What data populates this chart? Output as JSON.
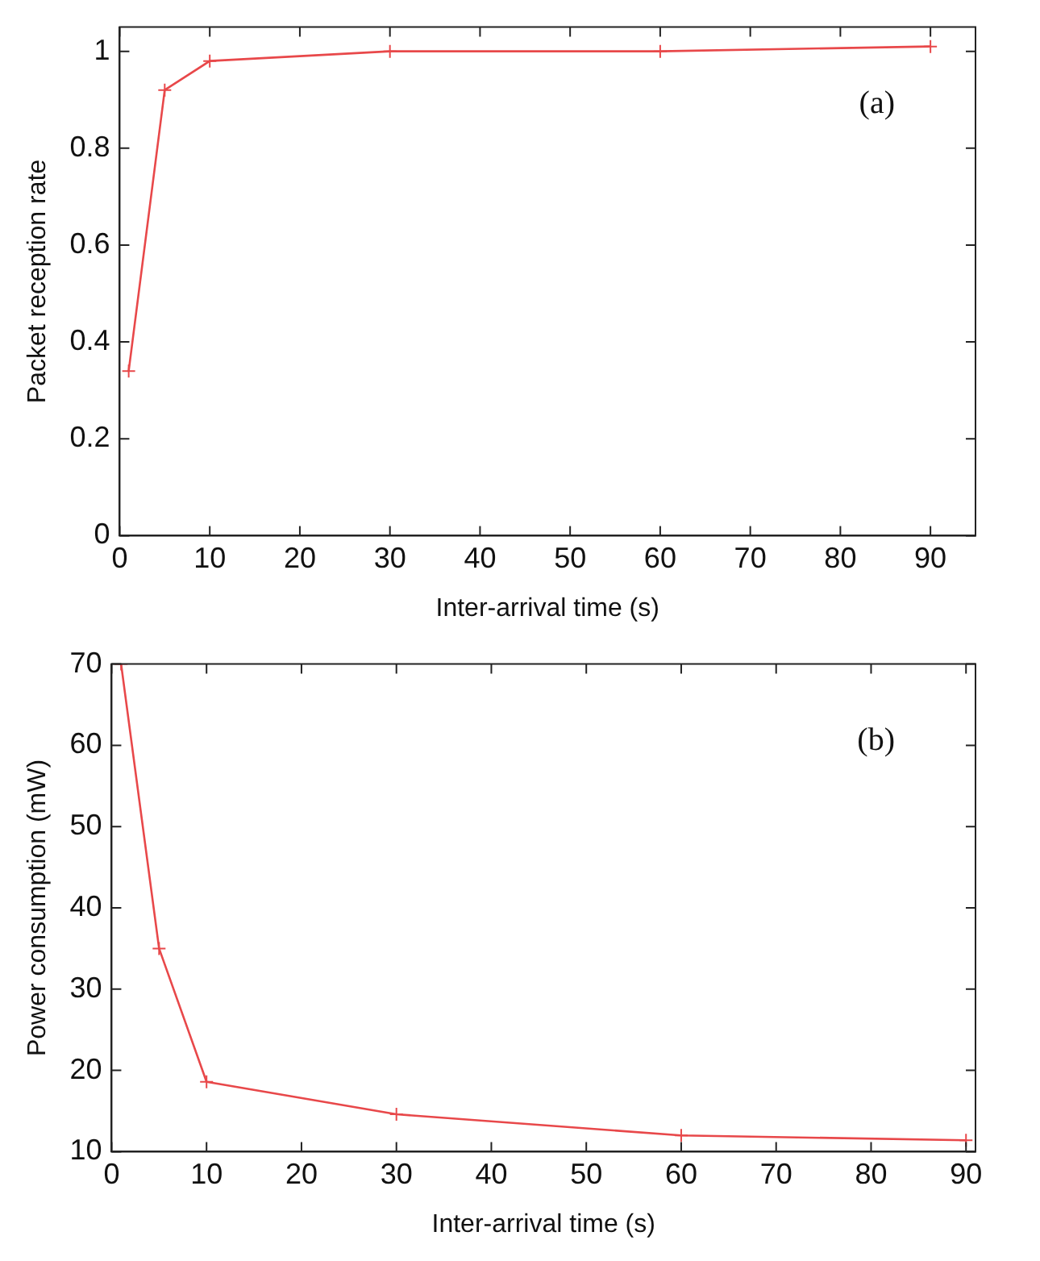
{
  "chart_data": [
    {
      "type": "line",
      "xlabel": "Inter-arrival time (s)",
      "ylabel": "Packet reception rate",
      "annotations": [
        "(a)"
      ],
      "x": [
        1,
        5,
        10,
        30,
        60,
        90
      ],
      "series": [
        {
          "color": "#e8484a",
          "values": [
            0.34,
            0.92,
            0.98,
            1.0,
            1.0,
            1.01
          ]
        }
      ],
      "xlim": [
        0,
        95
      ],
      "xticks": [
        0,
        10,
        20,
        30,
        40,
        50,
        60,
        70,
        80,
        90
      ],
      "ylim": [
        0,
        1.05
      ],
      "yticks": [
        0,
        0.2,
        0.4,
        0.6,
        0.8,
        1
      ],
      "marker": "cross",
      "line_style": "solid"
    },
    {
      "type": "line",
      "xlabel": "Inter-arrival time (s)",
      "ylabel": "Power consumption (mW)",
      "annotations": [
        "(b)"
      ],
      "x": [
        1,
        5,
        10,
        30,
        60,
        90
      ],
      "series": [
        {
          "color": "#e8484a",
          "values": [
            70,
            35,
            18.6,
            14.6,
            12,
            11.4
          ]
        }
      ],
      "xlim": [
        0,
        91
      ],
      "xticks": [
        0,
        10,
        20,
        30,
        40,
        50,
        60,
        70,
        80,
        90
      ],
      "ylim": [
        10,
        70
      ],
      "yticks": [
        10,
        20,
        30,
        40,
        50,
        60,
        70
      ],
      "marker": "cross",
      "line_style": "solid"
    }
  ]
}
